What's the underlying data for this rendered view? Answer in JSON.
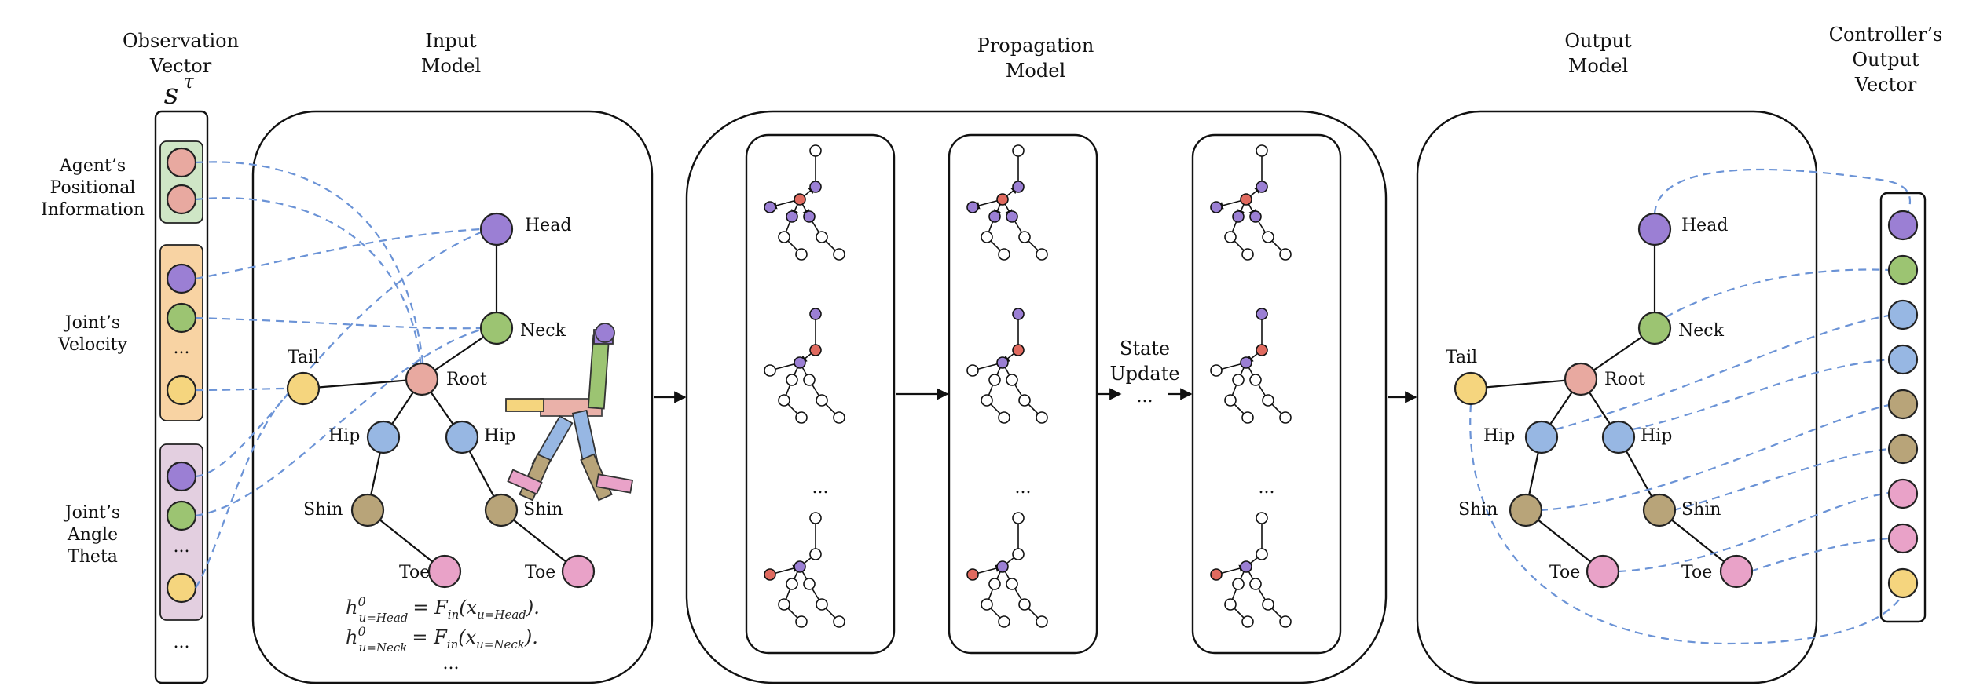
{
  "titles": {
    "observation": [
      "Observation",
      "Vector"
    ],
    "observation_symbol": "s",
    "observation_sup": "τ",
    "input": [
      "Input",
      "Model"
    ],
    "propagation": [
      "Propagation",
      "Model"
    ],
    "output": [
      "Output",
      "Model"
    ],
    "controller": [
      "Controller’s",
      "Output",
      "Vector"
    ]
  },
  "obs_groups": {
    "positional": [
      "Agent’s",
      "Positional",
      "Information"
    ],
    "velocity": [
      "Joint’s",
      "Velocity"
    ],
    "angle": [
      "Joint’s",
      "Angle",
      "Theta"
    ],
    "ellipsis": "..."
  },
  "joints": {
    "head": "Head",
    "neck": "Neck",
    "tail": "Tail",
    "root": "Root",
    "hip_left": "Hip",
    "hip_right": "Hip",
    "shin_left": "Shin",
    "shin_right": "Shin",
    "toe_left": "Toe",
    "toe_right": "Toe"
  },
  "state_update": [
    "State",
    "Update"
  ],
  "ellipsis": "...",
  "equations": {
    "line1_lhs": "h",
    "line1_sup": "0",
    "line1_sub": "u=Head",
    "line1_rhs_f": "= F",
    "line1_rhs_fsub": "in",
    "line1_rhs_arg": "(x",
    "line1_rhs_argsub": "u=Head",
    "line1_end": ").",
    "line2_lhs": "h",
    "line2_sup": "0",
    "line2_sub": "u=Neck",
    "line2_rhs_f": "= F",
    "line2_rhs_fsub": "in",
    "line2_rhs_arg": "(x",
    "line2_rhs_argsub": "u=Neck",
    "line2_end": ").",
    "more": "..."
  },
  "colors": {
    "head": "#9b7fd4",
    "neck": "#9cc472",
    "tail": "#f5d57e",
    "root": "#e8a9a0",
    "hip": "#97b7e3",
    "shin": "#b8a479",
    "toe": "#e9a2c8",
    "dash": "#6b93d6",
    "pos_group": "#cfe6c6",
    "vel_group": "#f8d3a3",
    "ang_group": "#e3cfe0",
    "red_node": "#e06a5f",
    "purple_node": "#9b7fd4"
  },
  "controller_vector_colors": [
    "#9b7fd4",
    "#9cc472",
    "#97b7e3",
    "#97b7e3",
    "#b8a479",
    "#b8a479",
    "#e9a2c8",
    "#e9a2c8",
    "#f5d57e"
  ]
}
